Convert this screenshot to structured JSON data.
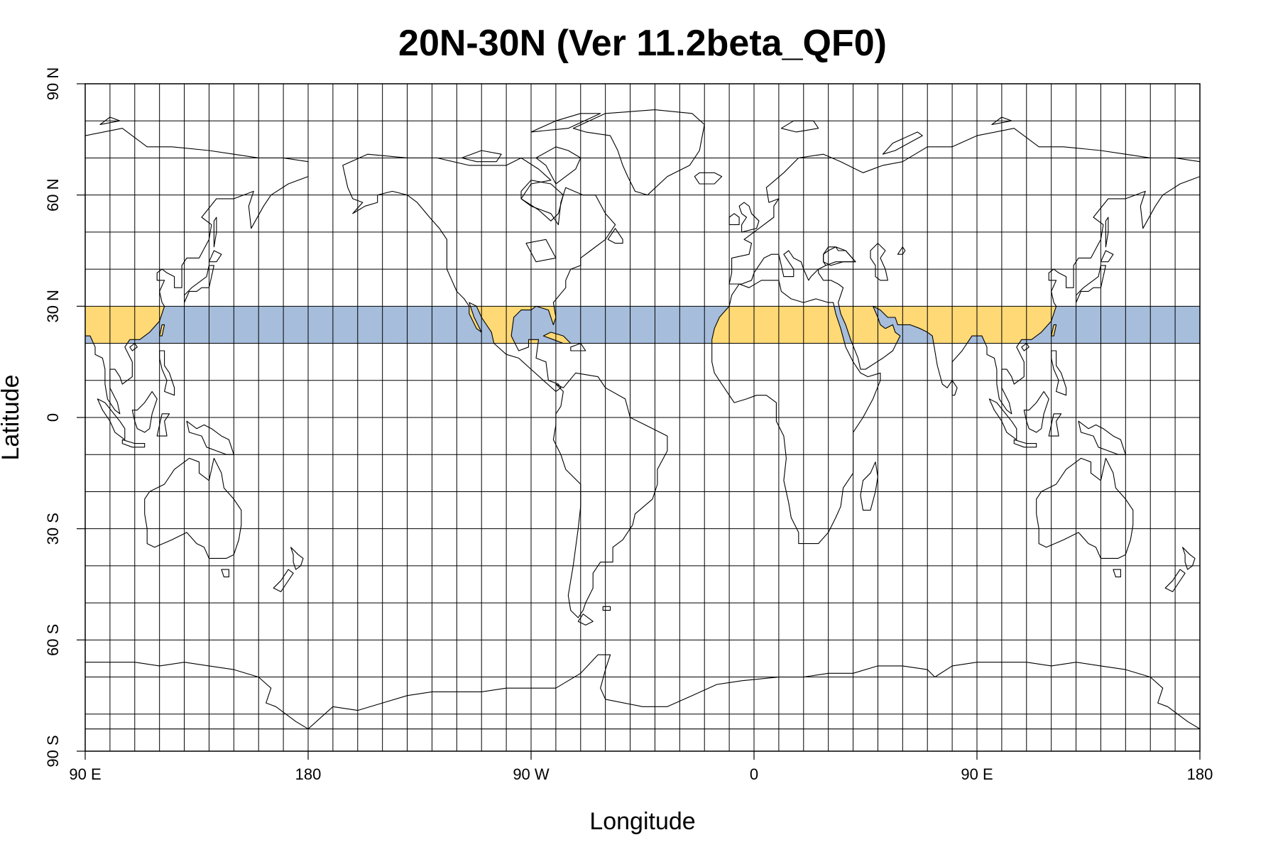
{
  "title": "20N-30N (Ver 11.2beta_QF0)",
  "x_axis": {
    "label": "Longitude",
    "ticks": [
      {
        "lon": 90,
        "label": "90 E"
      },
      {
        "lon": 180,
        "label": "180"
      },
      {
        "lon": 270,
        "label": "90 W"
      },
      {
        "lon": 360,
        "label": "0"
      },
      {
        "lon": 450,
        "label": "90 E"
      },
      {
        "lon": 540,
        "label": "180"
      }
    ]
  },
  "y_axis": {
    "label": "Latitude",
    "ticks": [
      {
        "lat": 90,
        "label": "90 N"
      },
      {
        "lat": 60,
        "label": "60 N"
      },
      {
        "lat": 30,
        "label": "30 N"
      },
      {
        "lat": 0,
        "label": "0"
      },
      {
        "lat": -30,
        "label": "30 S"
      },
      {
        "lat": -60,
        "label": "60 S"
      },
      {
        "lat": -90,
        "label": "90 S"
      }
    ]
  },
  "map": {
    "lon_range": [
      90,
      540
    ],
    "lat_range": [
      -90,
      90
    ],
    "grid_step_lon": 10,
    "grid_step_lat": 10,
    "band": {
      "lat_min": 20,
      "lat_max": 30
    },
    "colors": {
      "ocean_band": "#A6BDDB",
      "land_band": "#FED976",
      "coastline": "#000000",
      "grid": "#000000"
    }
  }
}
